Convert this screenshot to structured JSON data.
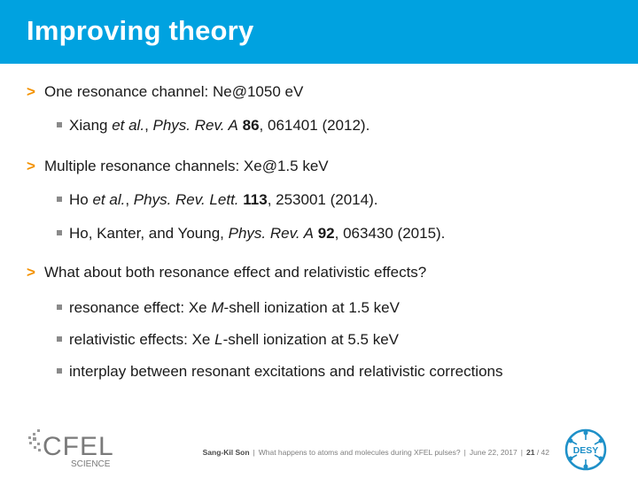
{
  "title": "Improving theory",
  "items": [
    {
      "text": "One resonance channel: Ne@1050 eV",
      "sub": [
        {
          "parts": [
            [
              "Xiang ",
              ""
            ],
            [
              "et al.",
              "i"
            ],
            [
              ", ",
              ""
            ],
            [
              "Phys. Rev. A",
              "i"
            ],
            [
              " ",
              ""
            ],
            [
              "86",
              "b"
            ],
            [
              ", 061401 (2012).",
              ""
            ]
          ]
        }
      ]
    },
    {
      "text": "Multiple resonance channels: Xe@1.5 keV",
      "sub": [
        {
          "parts": [
            [
              "Ho ",
              ""
            ],
            [
              "et al.",
              "i"
            ],
            [
              ", ",
              ""
            ],
            [
              "Phys. Rev. Lett.",
              "i"
            ],
            [
              " ",
              ""
            ],
            [
              "113",
              "b"
            ],
            [
              ", 253001 (2014).",
              ""
            ]
          ]
        },
        {
          "parts": [
            [
              "Ho, Kanter, and Young, ",
              ""
            ],
            [
              "Phys. Rev. A",
              "i"
            ],
            [
              " ",
              ""
            ],
            [
              "92",
              "b"
            ],
            [
              ", 063430 (2015).",
              ""
            ]
          ]
        }
      ]
    },
    {
      "text": "What about both resonance effect and relativistic effects?",
      "sub": [
        {
          "parts": [
            [
              "resonance effect: Xe ",
              ""
            ],
            [
              "M",
              "i"
            ],
            [
              "-shell ionization at 1.5 keV",
              ""
            ]
          ]
        },
        {
          "parts": [
            [
              "relativistic effects: Xe ",
              ""
            ],
            [
              "L",
              "i"
            ],
            [
              "-shell ionization at 5.5 keV",
              ""
            ]
          ]
        },
        {
          "parts": [
            [
              "interplay between resonant excitations and relativistic corrections",
              ""
            ]
          ]
        }
      ]
    }
  ],
  "footer": {
    "author": "Sang-Kil Son",
    "talk": "What happens to atoms and molecules during XFEL pulses?",
    "date": "June 22, 2017",
    "page": "21",
    "total": "/ 42"
  },
  "logos": {
    "cfel_text": "CFEL",
    "cfel_sub": "SCIENCE",
    "desy_text": "DESY"
  },
  "colors": {
    "header": "#00a2e0",
    "arrow": "#f39200",
    "desy": "#1e90c8"
  }
}
